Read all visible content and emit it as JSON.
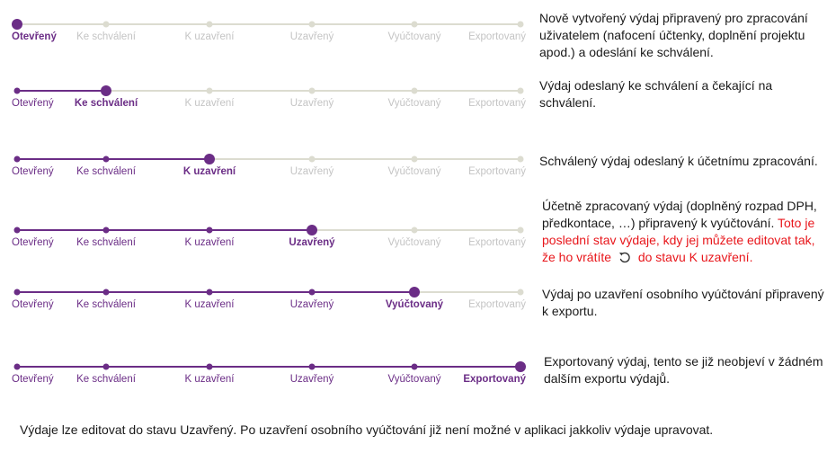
{
  "colors": {
    "active": "#6b2d86",
    "inactive": "#dcdcd0",
    "label_inactive": "#c4c4c4",
    "warning": "#e8161b"
  },
  "states": [
    "Otevřený",
    "Ke schválení",
    "K uzavření",
    "Uzavřený",
    "Vyúčtovaný",
    "Exportovaný"
  ],
  "rows": [
    {
      "current": 0,
      "description": "Nově vytvořený výdaj připravený pro zpracování uživatelem (nafocení účtenky, doplnění projektu apod.) a odeslání ke schválení."
    },
    {
      "current": 1,
      "description": "Výdaj odeslaný ke schválení a čekající na schválení."
    },
    {
      "current": 2,
      "description": "Schválený výdaj odeslaný k účetnímu zpracování."
    },
    {
      "current": 3,
      "description": "Účetně zpracovaný výdaj (doplněný rozpad DPH, předkontace, …) připravený k vyúčtování.",
      "warning_before_icon": "Toto je poslední stav výdaje, kdy jej můžete editovat tak, že ho vrátíte",
      "warning_after_icon": "do stavu K uzavření.",
      "icon": "undo-icon"
    },
    {
      "current": 4,
      "description": "Výdaj po uzavření osobního vyúčtování připravený k exportu."
    },
    {
      "current": 5,
      "description": "Exportovaný výdaj, tento se již neobjeví v žádném dalším exportu výdajů."
    }
  ],
  "footer": "Výdaje lze editovat do stavu Uzavřený. Po uzavření osobního vyúčtování již není možné v aplikaci jakkoliv výdaje upravovat."
}
